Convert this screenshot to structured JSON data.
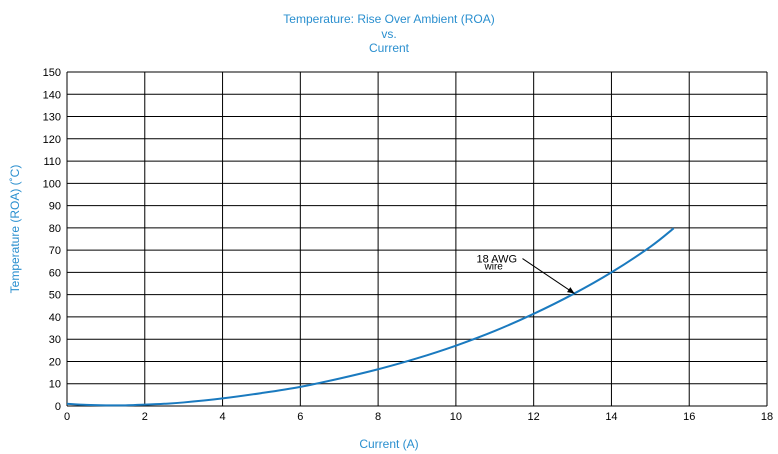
{
  "chart_data": {
    "type": "line",
    "title_lines": [
      "Temperature: Rise Over Ambient (ROA)",
      "vs.",
      "Current"
    ],
    "xlabel": "Current (A)",
    "ylabel": "Temperature (ROA) (˚C)",
    "xlim": [
      0,
      18
    ],
    "ylim": [
      0,
      150
    ],
    "xticks": [
      0,
      2,
      4,
      6,
      8,
      10,
      12,
      14,
      16,
      18
    ],
    "yticks": [
      0,
      10,
      20,
      30,
      40,
      50,
      60,
      70,
      80,
      90,
      100,
      110,
      120,
      130,
      140,
      150
    ],
    "grid": true,
    "series": [
      {
        "name": "18 AWG wire",
        "x": [
          0,
          0.5,
          1,
          1.5,
          2,
          2.5,
          3,
          4,
          5,
          6,
          7,
          8,
          9,
          10,
          11,
          12,
          13,
          14,
          15,
          15.6
        ],
        "y": [
          1.0,
          0.5,
          0.3,
          0.3,
          0.6,
          1.0,
          1.6,
          3.4,
          5.8,
          8.6,
          12.3,
          16.5,
          21.4,
          27.1,
          33.7,
          41.4,
          50.1,
          60.0,
          71.5,
          79.8
        ]
      }
    ],
    "annotation": {
      "line1": "18 AWG",
      "line2": "wire",
      "points_to": [
        13.05,
        50.5
      ]
    },
    "colors": {
      "curve": "#1a7abf",
      "text": "#2a8fcf",
      "grid": "#000000"
    }
  }
}
